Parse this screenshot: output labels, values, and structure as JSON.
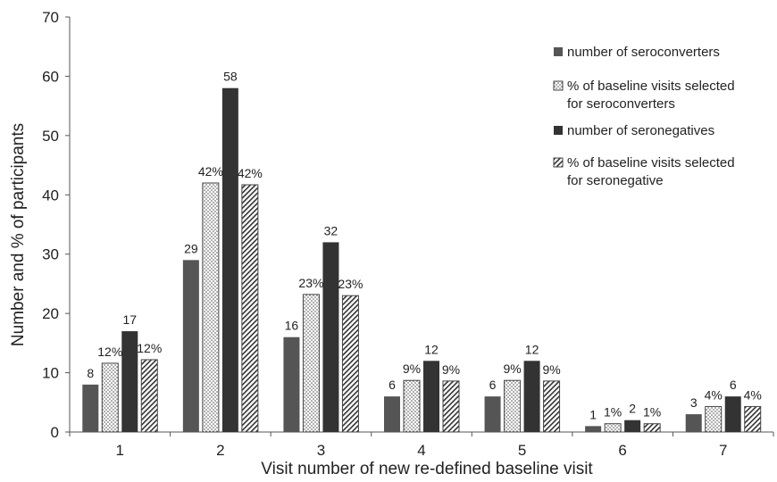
{
  "chart_data": {
    "type": "bar",
    "xlabel": "Visit number of new re-defined baseline visit",
    "ylabel": "Number and % of participants",
    "ylim": [
      0,
      70
    ],
    "yticks": [
      0,
      10,
      20,
      30,
      40,
      50,
      60,
      70
    ],
    "categories": [
      "1",
      "2",
      "3",
      "4",
      "5",
      "6",
      "7"
    ],
    "legend_position": "top-right",
    "grid": false,
    "series": [
      {
        "name": "number of seroconverters",
        "color": "#555555",
        "pattern": "solid",
        "values": [
          8,
          29,
          16,
          6,
          6,
          1,
          3
        ],
        "labels": [
          "8",
          "29",
          "16",
          "6",
          "6",
          "1",
          "3"
        ]
      },
      {
        "name": "% of baseline visits selected for seroconverters",
        "color": "#ffffff",
        "pattern": "dots",
        "values": [
          11.6,
          42,
          23.2,
          8.7,
          8.7,
          1.4,
          4.3
        ],
        "labels": [
          "12%",
          "42%",
          "23%",
          "9%",
          "9%",
          "1%",
          "4%"
        ]
      },
      {
        "name": "number of seronegatives",
        "color": "#333333",
        "pattern": "solid",
        "values": [
          17,
          58,
          32,
          12,
          12,
          2,
          6
        ],
        "labels": [
          "17",
          "58",
          "32",
          "12",
          "12",
          "2",
          "6"
        ]
      },
      {
        "name": "% of baseline visits selected for seronegative",
        "color": "#ffffff",
        "pattern": "diagonal",
        "values": [
          12.2,
          41.7,
          23,
          8.6,
          8.6,
          1.4,
          4.3
        ],
        "labels": [
          "12%",
          "42%",
          "23%",
          "9%",
          "9%",
          "1%",
          "4%"
        ]
      }
    ],
    "legend_lines": [
      [
        "number of seroconverters"
      ],
      [
        "% of baseline visits selected",
        "for seroconverters"
      ],
      [
        "number of seronegatives"
      ],
      [
        "% of baseline visits selected",
        "for seronegative"
      ]
    ]
  }
}
